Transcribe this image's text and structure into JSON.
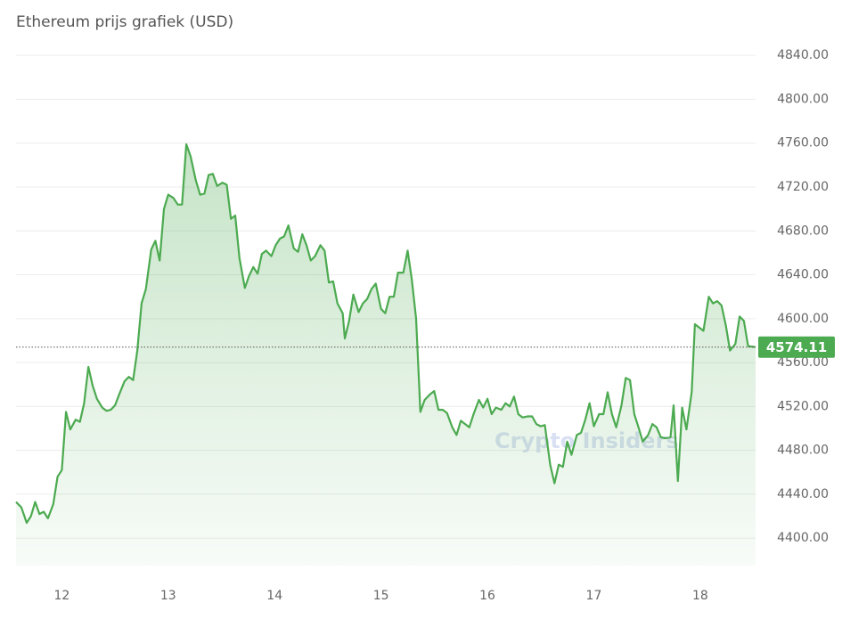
{
  "chart_data": {
    "type": "line",
    "title": "Ethereum prijs grafiek (USD)",
    "watermark": "Crypto Insiders",
    "x": [
      11.57,
      11.62,
      11.67,
      11.71,
      11.75,
      11.79,
      11.83,
      11.87,
      11.92,
      11.96,
      12.0,
      12.04,
      12.08,
      12.13,
      12.17,
      12.21,
      12.25,
      12.29,
      12.33,
      12.38,
      12.42,
      12.46,
      12.5,
      12.54,
      12.59,
      12.63,
      12.67,
      12.71,
      12.75,
      12.79,
      12.84,
      12.88,
      12.92,
      12.96,
      13.0,
      13.05,
      13.09,
      13.13,
      13.17,
      13.21,
      13.26,
      13.3,
      13.34,
      13.38,
      13.42,
      13.46,
      13.51,
      13.55,
      13.59,
      13.63,
      13.67,
      13.72,
      13.76,
      13.8,
      13.84,
      13.88,
      13.92,
      13.97,
      14.01,
      14.05,
      14.09,
      14.13,
      14.18,
      14.22,
      14.26,
      14.3,
      14.34,
      14.38,
      14.43,
      14.47,
      14.51,
      14.55,
      14.59,
      14.64,
      14.66,
      14.7,
      14.74,
      14.79,
      14.83,
      14.87,
      14.91,
      14.95,
      15.0,
      15.04,
      15.08,
      15.12,
      15.16,
      15.21,
      15.25,
      15.29,
      15.33,
      15.37,
      15.41,
      15.46,
      15.5,
      15.54,
      15.58,
      15.62,
      15.67,
      15.71,
      15.75,
      15.79,
      15.83,
      15.87,
      15.92,
      15.96,
      16.0,
      16.04,
      16.08,
      16.13,
      16.17,
      16.21,
      16.25,
      16.29,
      16.33,
      16.38,
      16.42,
      16.46,
      16.5,
      16.54,
      16.59,
      16.63,
      16.67,
      16.71,
      16.75,
      16.79,
      16.84,
      16.88,
      16.92,
      16.96,
      17.0,
      17.05,
      17.09,
      17.13,
      17.17,
      17.21,
      17.26,
      17.3,
      17.34,
      17.38,
      17.42,
      17.46,
      17.51,
      17.55,
      17.59,
      17.63,
      17.67,
      17.72,
      17.75,
      17.79,
      17.83,
      17.87,
      17.92,
      17.95,
      17.99,
      18.03,
      18.08,
      18.12,
      18.16,
      18.2,
      18.24,
      18.28,
      18.33,
      18.37,
      18.41,
      18.45,
      18.52
    ],
    "series": [
      {
        "name": "ETH",
        "color": "#4caa50",
        "values": [
          4433,
          4428,
          4414,
          4420,
          4433,
          4422,
          4424,
          4418,
          4431,
          4456,
          4462,
          4515,
          4499,
          4508,
          4506,
          4523,
          4556,
          4539,
          4527,
          4519,
          4516,
          4517,
          4521,
          4531,
          4543,
          4547,
          4544,
          4571,
          4614,
          4627,
          4663,
          4671,
          4653,
          4700,
          4713,
          4710,
          4704,
          4704,
          4759,
          4748,
          4726,
          4713,
          4714,
          4731,
          4732,
          4721,
          4724,
          4722,
          4691,
          4694,
          4655,
          4628,
          4639,
          4647,
          4641,
          4659,
          4662,
          4657,
          4667,
          4673,
          4675,
          4685,
          4664,
          4661,
          4677,
          4667,
          4653,
          4657,
          4667,
          4662,
          4633,
          4634,
          4614,
          4605,
          4582,
          4598,
          4622,
          4606,
          4614,
          4618,
          4627,
          4632,
          4609,
          4605,
          4620,
          4620,
          4642,
          4642,
          4662,
          4635,
          4600,
          4515,
          4526,
          4531,
          4534,
          4517,
          4517,
          4514,
          4501,
          4494,
          4507,
          4504,
          4501,
          4513,
          4526,
          4519,
          4527,
          4513,
          4519,
          4517,
          4523,
          4520,
          4529,
          4513,
          4510,
          4511,
          4511,
          4504,
          4502,
          4503,
          4467,
          4450,
          4467,
          4465,
          4488,
          4476,
          4494,
          4496,
          4508,
          4523,
          4502,
          4513,
          4513,
          4533,
          4513,
          4501,
          4521,
          4546,
          4544,
          4513,
          4501,
          4488,
          4494,
          4504,
          4501,
          4492,
          4491,
          4492,
          4521,
          4452,
          4519,
          4499,
          4533,
          4595,
          4592,
          4589,
          4620,
          4614,
          4616,
          4612,
          4594,
          4571,
          4577,
          4602,
          4598,
          4575,
          4574.11
        ]
      }
    ],
    "current_price": 4574.11,
    "xlim": [
      11.57,
      18.52
    ],
    "xticks": [
      12,
      13,
      14,
      15,
      16,
      17,
      18
    ],
    "ylim": [
      4375,
      4858
    ],
    "yticks": [
      {
        "value": 4400,
        "label": "4400.00"
      },
      {
        "value": 4440,
        "label": "4440.00"
      },
      {
        "value": 4480,
        "label": "4480.00"
      },
      {
        "value": 4520,
        "label": "4520.00"
      },
      {
        "value": 4560,
        "label": "4560.00"
      },
      {
        "value": 4600,
        "label": "4600.00"
      },
      {
        "value": 4640,
        "label": "4640.00"
      },
      {
        "value": 4680,
        "label": "4680.00"
      },
      {
        "value": 4720,
        "label": "4720.00"
      },
      {
        "value": 4760,
        "label": "4760.00"
      },
      {
        "value": 4800,
        "label": "4800.00"
      },
      {
        "value": 4840,
        "label": "4840.00"
      }
    ],
    "grid": true
  }
}
